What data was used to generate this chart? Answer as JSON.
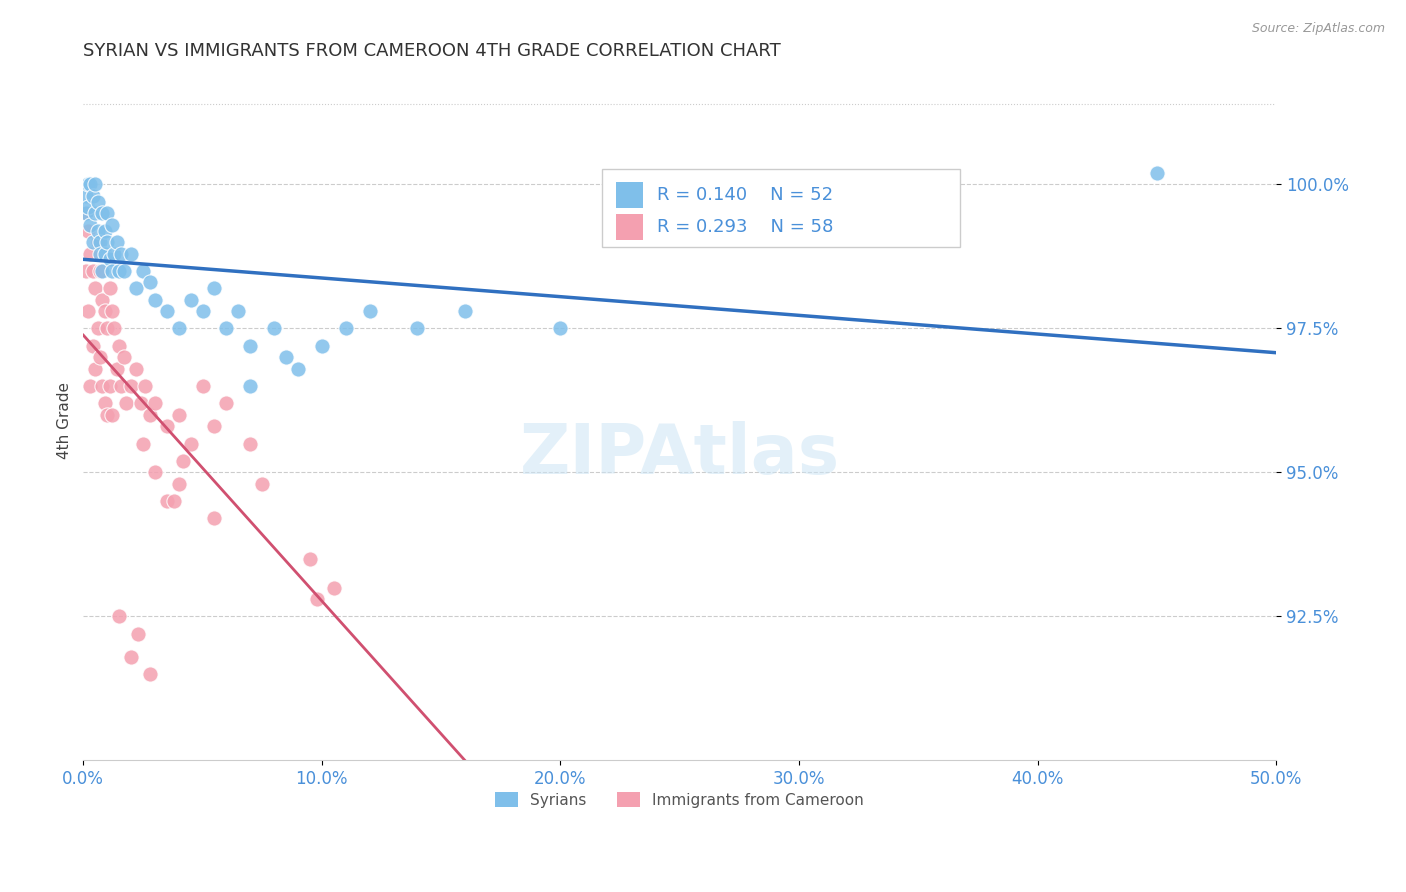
{
  "title": "SYRIAN VS IMMIGRANTS FROM CAMEROON 4TH GRADE CORRELATION CHART",
  "source": "Source: ZipAtlas.com",
  "ylabel": "4th Grade",
  "xlim": [
    0.0,
    50.0
  ],
  "yticks": [
    92.5,
    95.0,
    97.5,
    100.0
  ],
  "ytick_labels": [
    "92.5%",
    "95.0%",
    "97.5%",
    "100.0%"
  ],
  "xticks": [
    0.0,
    10.0,
    20.0,
    30.0,
    40.0,
    50.0
  ],
  "xtick_labels": [
    "0.0%",
    "10.0%",
    "20.0%",
    "30.0%",
    "40.0%",
    "50.0%"
  ],
  "syrians_R": 0.14,
  "syrians_N": 52,
  "cameroon_R": 0.293,
  "cameroon_N": 58,
  "blue_color": "#7fbfea",
  "pink_color": "#f4a0b0",
  "blue_line_color": "#3070c0",
  "pink_line_color": "#d05070",
  "legend_label_1": "Syrians",
  "legend_label_2": "Immigrants from Cameroon",
  "syrians_x": [
    0.1,
    0.1,
    0.2,
    0.2,
    0.3,
    0.3,
    0.4,
    0.4,
    0.5,
    0.5,
    0.6,
    0.6,
    0.7,
    0.7,
    0.8,
    0.8,
    0.9,
    0.9,
    1.0,
    1.0,
    1.1,
    1.2,
    1.2,
    1.3,
    1.4,
    1.5,
    1.6,
    1.7,
    2.0,
    2.2,
    2.5,
    2.8,
    3.0,
    3.5,
    4.0,
    4.5,
    5.0,
    5.5,
    6.0,
    6.5,
    7.0,
    8.0,
    9.0,
    10.0,
    11.0,
    12.0,
    14.0,
    16.0,
    7.0,
    8.5,
    20.0,
    45.0
  ],
  "syrians_y": [
    99.8,
    99.5,
    99.6,
    100.0,
    99.3,
    100.0,
    99.8,
    99.0,
    99.5,
    100.0,
    99.2,
    99.7,
    99.0,
    98.8,
    99.5,
    98.5,
    99.2,
    98.8,
    99.0,
    99.5,
    98.7,
    99.3,
    98.5,
    98.8,
    99.0,
    98.5,
    98.8,
    98.5,
    98.8,
    98.2,
    98.5,
    98.3,
    98.0,
    97.8,
    97.5,
    98.0,
    97.8,
    98.2,
    97.5,
    97.8,
    97.2,
    97.5,
    96.8,
    97.2,
    97.5,
    97.8,
    97.5,
    97.8,
    96.5,
    97.0,
    97.5,
    100.2
  ],
  "cameroon_x": [
    0.1,
    0.1,
    0.2,
    0.2,
    0.3,
    0.3,
    0.4,
    0.4,
    0.5,
    0.5,
    0.6,
    0.6,
    0.7,
    0.7,
    0.8,
    0.8,
    0.9,
    0.9,
    1.0,
    1.0,
    1.1,
    1.1,
    1.2,
    1.2,
    1.3,
    1.4,
    1.5,
    1.6,
    1.7,
    1.8,
    2.0,
    2.2,
    2.4,
    2.6,
    2.8,
    3.0,
    3.5,
    4.0,
    4.5,
    5.0,
    5.5,
    6.0,
    7.0,
    3.0,
    3.5,
    4.0,
    4.2,
    5.5,
    7.5,
    2.5,
    3.8,
    9.5,
    9.8,
    10.5,
    1.5,
    2.0,
    2.3,
    2.8
  ],
  "cameroon_y": [
    99.5,
    98.5,
    99.2,
    97.8,
    98.8,
    96.5,
    98.5,
    97.2,
    98.2,
    96.8,
    99.0,
    97.5,
    98.5,
    97.0,
    98.0,
    96.5,
    97.8,
    96.2,
    97.5,
    96.0,
    98.2,
    96.5,
    97.8,
    96.0,
    97.5,
    96.8,
    97.2,
    96.5,
    97.0,
    96.2,
    96.5,
    96.8,
    96.2,
    96.5,
    96.0,
    96.2,
    95.8,
    96.0,
    95.5,
    96.5,
    95.8,
    96.2,
    95.5,
    95.0,
    94.5,
    94.8,
    95.2,
    94.2,
    94.8,
    95.5,
    94.5,
    93.5,
    92.8,
    93.0,
    92.5,
    91.8,
    92.2,
    91.5
  ]
}
